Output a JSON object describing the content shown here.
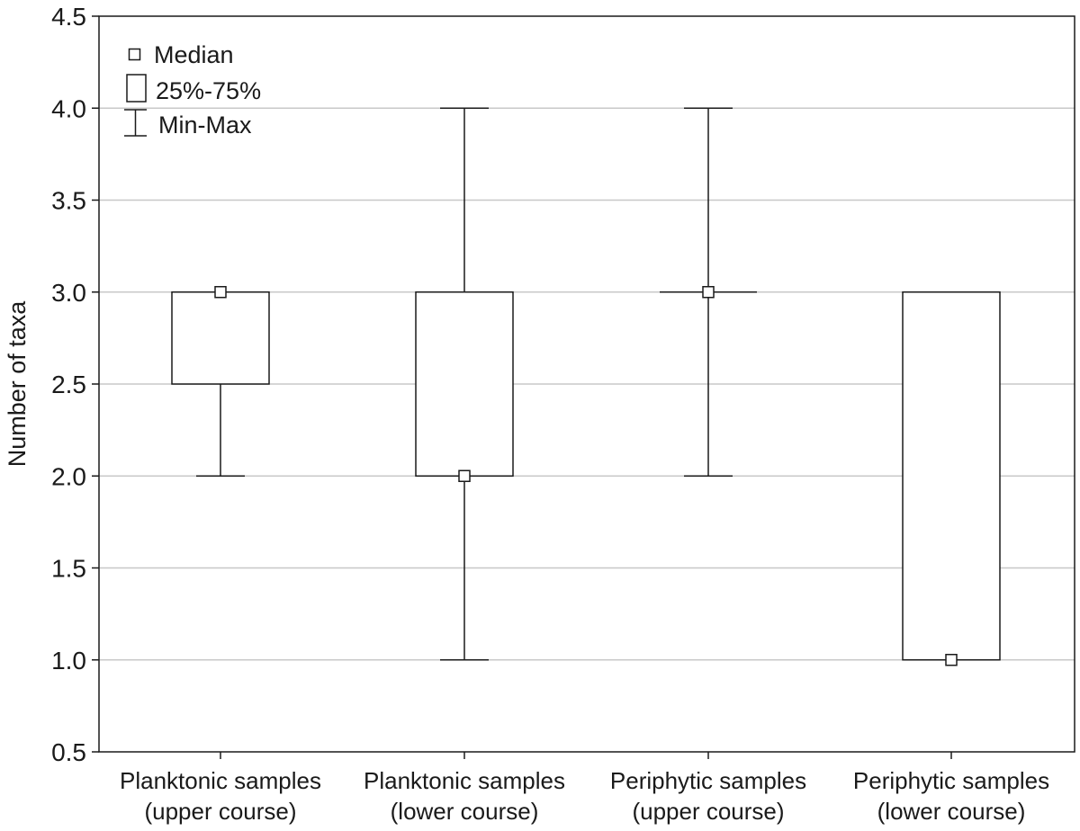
{
  "chart_data": {
    "type": "box",
    "title": "",
    "xlabel": "",
    "ylabel": "Number of taxa",
    "ylim": [
      0.5,
      4.5
    ],
    "yticks": [
      "0.5",
      "1.0",
      "1.5",
      "2.0",
      "2.5",
      "3.0",
      "3.5",
      "4.0",
      "4.5"
    ],
    "grid": "horizontal",
    "legend_position": "top-left",
    "legend": {
      "median": "Median",
      "box": "25%-75%",
      "whisker": "Min-Max"
    },
    "categories": [
      {
        "line1": "Planktonic samples",
        "line2": "(upper course)"
      },
      {
        "line1": "Planktonic samples",
        "line2": "(lower course)"
      },
      {
        "line1": "Periphytic samples",
        "line2": "(upper course)"
      },
      {
        "line1": "Periphytic samples",
        "line2": "(lower course)"
      }
    ],
    "boxes": [
      {
        "min": 2,
        "q1": 2.5,
        "median": 3,
        "q3": 3,
        "max": 3
      },
      {
        "min": 1,
        "q1": 2,
        "median": 2,
        "q3": 3,
        "max": 4
      },
      {
        "min": 2,
        "q1": 3,
        "median": 3,
        "q3": 3,
        "max": 4
      },
      {
        "min": 1,
        "q1": 1,
        "median": 1,
        "q3": 3,
        "max": 3
      }
    ],
    "colors": {
      "stroke": "#1a1a1a",
      "grid": "#c8c8c8",
      "fill": "#ffffff"
    }
  }
}
